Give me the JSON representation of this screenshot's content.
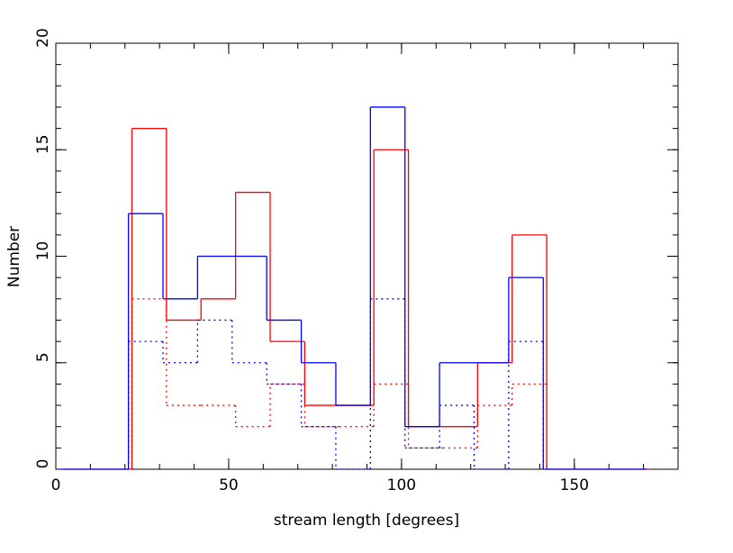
{
  "chart_data": {
    "type": "step-histogram",
    "xlabel": "stream length [degrees]",
    "ylabel": "Number",
    "xlim": [
      0,
      180
    ],
    "ylim": [
      0,
      20
    ],
    "xticks": [
      0,
      50,
      100,
      150
    ],
    "yticks": [
      0,
      5,
      10,
      15,
      20
    ],
    "series": [
      {
        "color": "#ff0000",
        "style": "solid",
        "bins": [
          2,
          12,
          22,
          32,
          42,
          52,
          62,
          72,
          82,
          92,
          102,
          112,
          122,
          132,
          142,
          152,
          162,
          172
        ],
        "values": [
          0,
          0,
          16,
          7,
          8,
          13,
          6,
          3,
          3,
          15,
          2,
          2,
          5,
          11,
          0,
          0,
          0
        ]
      },
      {
        "color": "#0000ff",
        "style": "solid",
        "bins": [
          1,
          11,
          21,
          31,
          41,
          51,
          61,
          71,
          81,
          91,
          101,
          111,
          121,
          131,
          141,
          151,
          161,
          171
        ],
        "values": [
          0,
          0,
          12,
          8,
          10,
          10,
          7,
          5,
          3,
          17,
          2,
          5,
          5,
          9,
          0,
          0,
          0
        ]
      },
      {
        "color": "#ff0000",
        "style": "dotted",
        "bins": [
          22,
          32,
          42,
          52,
          62,
          72,
          82,
          92,
          102,
          112,
          122,
          132,
          142
        ],
        "values": [
          8,
          3,
          3,
          2,
          4,
          2,
          2,
          4,
          1,
          1,
          3,
          4
        ]
      },
      {
        "color": "#0000ff",
        "style": "dotted",
        "bins": [
          21,
          31,
          41,
          51,
          61,
          71,
          81,
          91,
          101,
          111,
          121,
          131,
          141
        ],
        "values": [
          6,
          5,
          7,
          5,
          4,
          2,
          0,
          8,
          1,
          3,
          0,
          6
        ]
      }
    ]
  }
}
